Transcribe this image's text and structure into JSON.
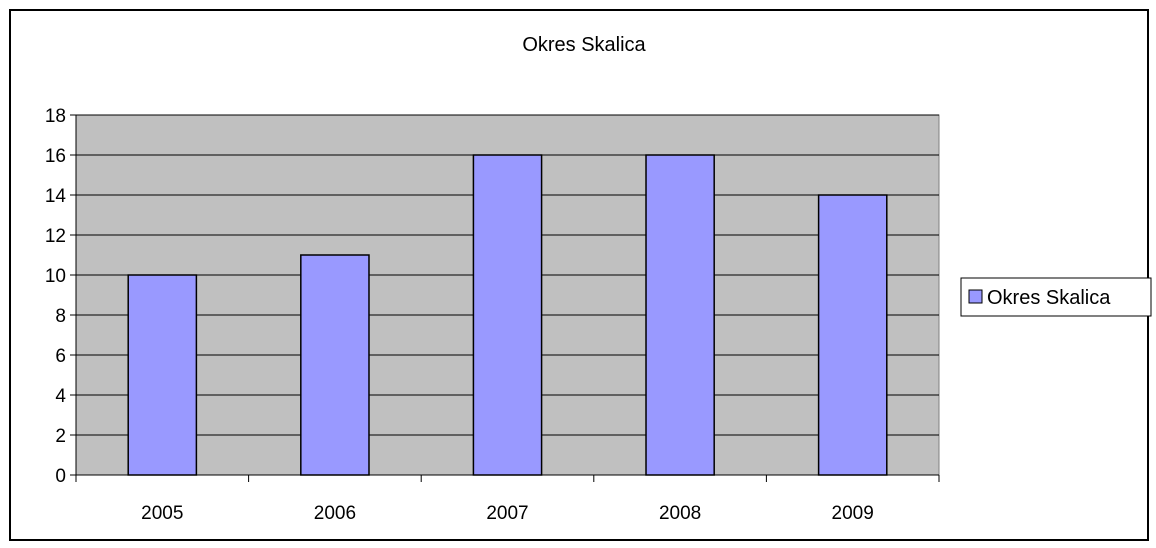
{
  "chart_data": {
    "type": "bar",
    "title": "Okres Skalica",
    "categories": [
      "2005",
      "2006",
      "2007",
      "2008",
      "2009"
    ],
    "series": [
      {
        "name": "Okres Skalica",
        "values": [
          10,
          11,
          16,
          16,
          14
        ]
      }
    ],
    "xlabel": "",
    "ylabel": "",
    "ylim": [
      0,
      18
    ],
    "yticks": [
      0,
      2,
      4,
      6,
      8,
      10,
      12,
      14,
      16,
      18
    ],
    "grid": true,
    "legend": "right",
    "colors": {
      "bar_fill": "#9999ff",
      "plot_background": "#c0c0c0",
      "gridline": "#000000"
    }
  }
}
